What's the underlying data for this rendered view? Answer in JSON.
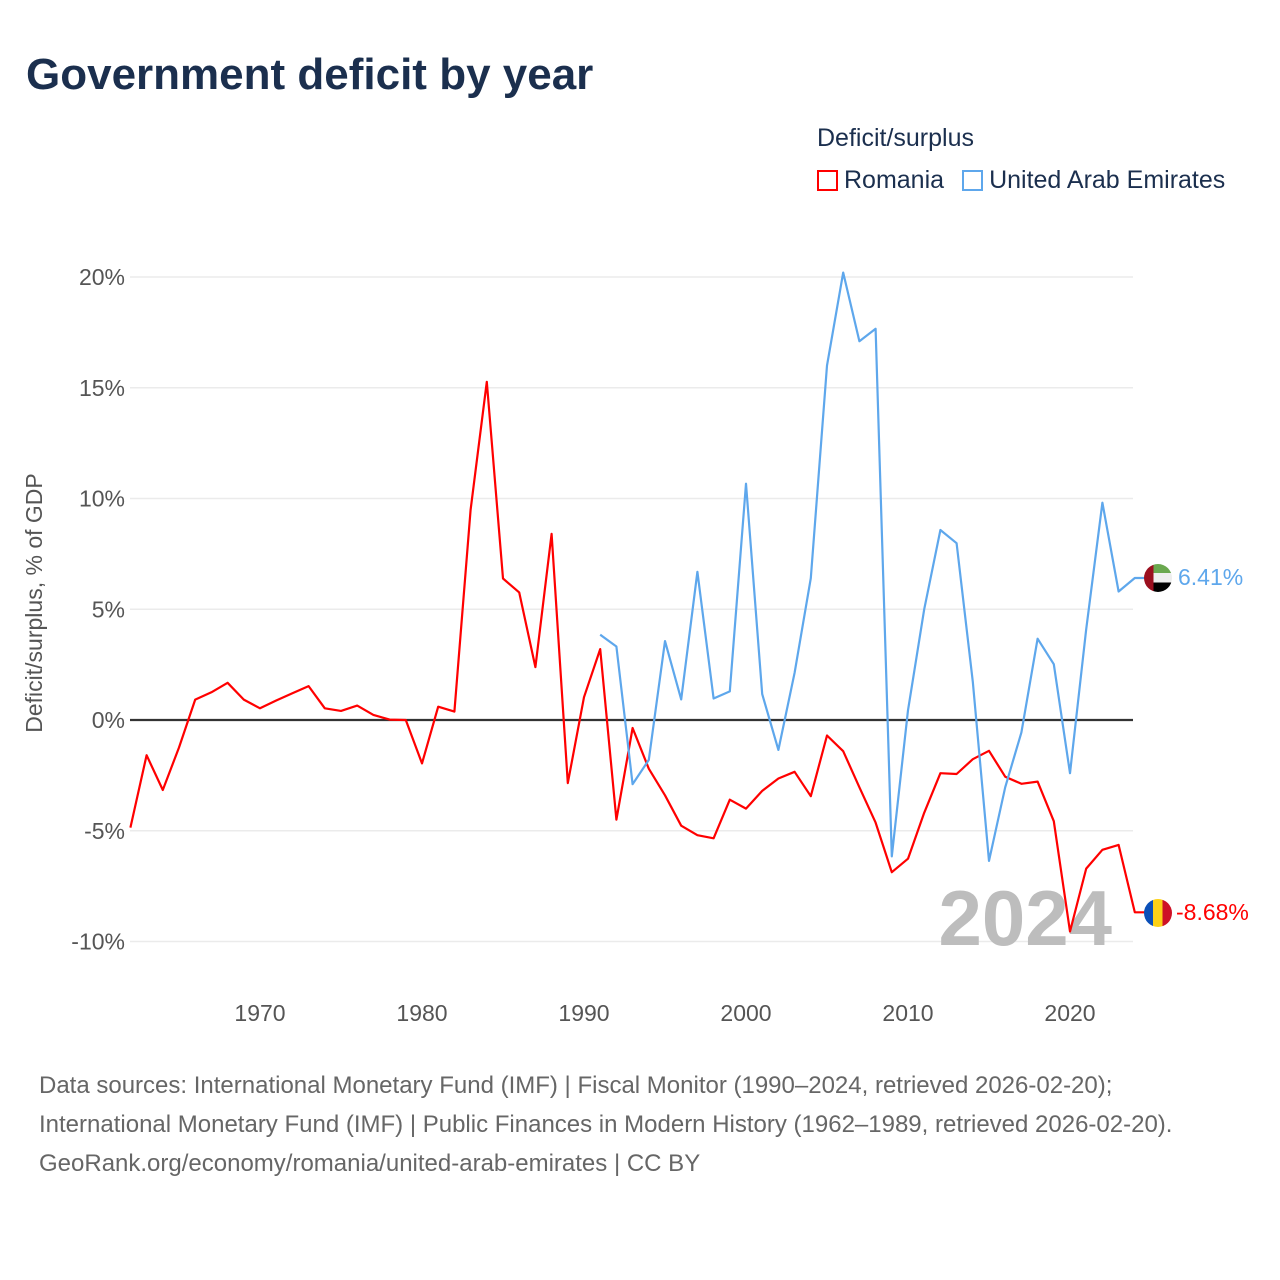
{
  "title": "Government deficit by year",
  "legend": {
    "title": "Deficit/surplus",
    "items": [
      {
        "label": "Romania",
        "color": "#ff0000"
      },
      {
        "label": "United Arab Emirates",
        "color": "#5ea7ec"
      }
    ]
  },
  "chart_data": {
    "type": "line",
    "title": "Government deficit by year",
    "ylabel": "Deficit/surplus, % of GDP",
    "xlabel": "",
    "ylim": [
      -10,
      20
    ],
    "xlim": [
      1962,
      2024
    ],
    "grid": true,
    "legend_position": "top-right",
    "y_ticks": [
      {
        "value": 20,
        "label": "20%"
      },
      {
        "value": 15,
        "label": "15%"
      },
      {
        "value": 10,
        "label": "10%"
      },
      {
        "value": 5,
        "label": "5%"
      },
      {
        "value": 0,
        "label": "0%"
      },
      {
        "value": -5,
        "label": "-5%"
      },
      {
        "value": -10,
        "label": "-10%"
      }
    ],
    "x_ticks": [
      {
        "value": 1970,
        "label": "1970"
      },
      {
        "value": 1980,
        "label": "1980"
      },
      {
        "value": 1990,
        "label": "1990"
      },
      {
        "value": 2000,
        "label": "2000"
      },
      {
        "value": 2010,
        "label": "2010"
      },
      {
        "value": 2020,
        "label": "2020"
      }
    ],
    "watermark_year": "2024",
    "series": [
      {
        "name": "Romania",
        "color": "#ff0000",
        "start_year": 1962,
        "end_label": "-8.68%",
        "values": [
          -4.86,
          -1.59,
          -3.16,
          -1.24,
          0.92,
          1.25,
          1.68,
          0.92,
          0.53,
          0.88,
          1.21,
          1.53,
          0.53,
          0.41,
          0.65,
          0.23,
          0.02,
          0,
          -1.96,
          0.6,
          0.38,
          9.49,
          15.27,
          6.39,
          5.76,
          2.39,
          8.4,
          -2.85,
          1.03,
          3.2,
          -4.5,
          -0.36,
          -2.2,
          -3.4,
          -4.77,
          -5.2,
          -5.34,
          -3.6,
          -4.0,
          -3.2,
          -2.64,
          -2.34,
          -3.44,
          -0.7,
          -1.41,
          -3.04,
          -4.63,
          -6.87,
          -6.26,
          -4.19,
          -2.4,
          -2.44,
          -1.77,
          -1.39,
          -2.56,
          -2.88,
          -2.78,
          -4.57,
          -9.55,
          -6.71,
          -5.86,
          -5.64,
          -8.68
        ]
      },
      {
        "name": "United Arab Emirates",
        "color": "#5ea7ec",
        "start_year": 1991,
        "end_label": "6.41%",
        "values": [
          3.85,
          3.32,
          -2.9,
          -1.8,
          3.56,
          0.93,
          6.69,
          0.97,
          1.29,
          10.67,
          1.17,
          -1.35,
          2.13,
          6.4,
          16.0,
          20.2,
          17.1,
          17.66,
          -6.16,
          0.44,
          5.0,
          8.58,
          7.98,
          1.73,
          -6.36,
          -3.04,
          -0.56,
          3.67,
          2.52,
          -2.4,
          4.1,
          9.81,
          5.8,
          6.41
        ]
      }
    ]
  },
  "footer": {
    "sources": "Data sources: International Monetary Fund (IMF) | Fiscal Monitor (1990–2024, retrieved 2026-02-20); International Monetary Fund (IMF) | Public Finances in Modern History (1962–1989, retrieved 2026-02-20).",
    "credit": "GeoRank.org/economy/romania/united-arab-emirates | CC BY"
  }
}
